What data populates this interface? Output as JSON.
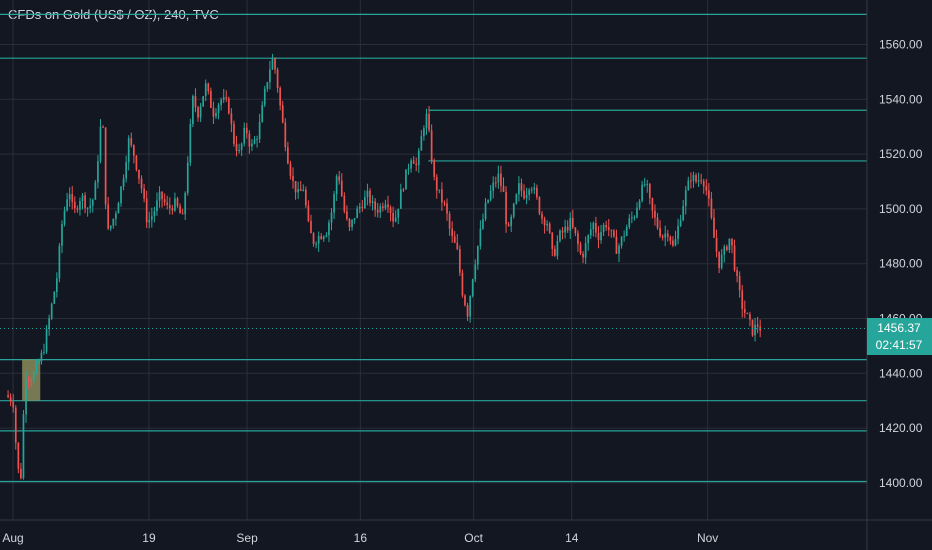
{
  "header": {
    "title": "CFDs on Gold (US$ / OZ), 240, TVC"
  },
  "price_label": {
    "value": "1456.37",
    "countdown": "02:41:57"
  },
  "colors": {
    "background": "#131722",
    "grid": "#2a2e39",
    "up": "#26a69a",
    "down": "#ef5350",
    "level_line": "#26a69a",
    "price_tag": "#26a69a",
    "zone_fill": "#8a8b5a"
  },
  "chart_data": {
    "type": "candlestick",
    "title": "CFDs on Gold (US$ / OZ), 240, TVC",
    "xlabel": "",
    "ylabel": "",
    "ylim": [
      1392,
      1576
    ],
    "y_ticks": [
      1400,
      1420,
      1440,
      1460,
      1480,
      1500,
      1520,
      1540,
      1560
    ],
    "x_ticks": [
      {
        "label": "Aug",
        "day": 1
      },
      {
        "label": "19",
        "day": 19
      },
      {
        "label": "Sep",
        "day": 32
      },
      {
        "label": "16",
        "day": 47
      },
      {
        "label": "Oct",
        "day": 62
      },
      {
        "label": "14",
        "day": 75
      },
      {
        "label": "Nov",
        "day": 93
      }
    ],
    "last_price": 1456.37,
    "horizontal_levels": [
      {
        "price": 1571,
        "from_day": 0
      },
      {
        "price": 1555,
        "from_day": 0
      },
      {
        "price": 1536,
        "from_day": 56
      },
      {
        "price": 1517.5,
        "from_day": 56
      },
      {
        "price": 1445,
        "from_day": 0
      },
      {
        "price": 1430,
        "from_day": 0
      },
      {
        "price": 1419,
        "from_day": 0
      },
      {
        "price": 1400.5,
        "from_day": 0
      }
    ],
    "zone": {
      "from_day": 2.2,
      "to_day": 4.6,
      "low": 1430,
      "high": 1445
    },
    "path": [
      [
        0,
        1432
      ],
      [
        1,
        1430
      ],
      [
        1.6,
        1405
      ],
      [
        2.2,
        1402
      ],
      [
        2.5,
        1440
      ],
      [
        3.5,
        1438
      ],
      [
        5,
        1448
      ],
      [
        5.8,
        1460
      ],
      [
        6.8,
        1475
      ],
      [
        7.5,
        1495
      ],
      [
        8.4,
        1508
      ],
      [
        9,
        1498
      ],
      [
        10,
        1505
      ],
      [
        11,
        1500
      ],
      [
        11.8,
        1505
      ],
      [
        12.6,
        1530
      ],
      [
        13,
        1528
      ],
      [
        13.4,
        1490
      ],
      [
        14.5,
        1498
      ],
      [
        15.5,
        1510
      ],
      [
        16.3,
        1525
      ],
      [
        17,
        1520
      ],
      [
        18,
        1508
      ],
      [
        18.8,
        1495
      ],
      [
        19.5,
        1498
      ],
      [
        20.5,
        1505
      ],
      [
        21.5,
        1500
      ],
      [
        22.5,
        1502
      ],
      [
        23.5,
        1496
      ],
      [
        24.2,
        1520
      ],
      [
        24.8,
        1540
      ],
      [
        25.5,
        1535
      ],
      [
        26.5,
        1545
      ],
      [
        27.5,
        1535
      ],
      [
        28.5,
        1540
      ],
      [
        29.5,
        1538
      ],
      [
        30.2,
        1525
      ],
      [
        31,
        1520
      ],
      [
        31.8,
        1530
      ],
      [
        32.5,
        1522
      ],
      [
        33.5,
        1528
      ],
      [
        34.5,
        1545
      ],
      [
        35.3,
        1555
      ],
      [
        35.8,
        1550
      ],
      [
        36.5,
        1535
      ],
      [
        37.3,
        1520
      ],
      [
        38,
        1510
      ],
      [
        38.8,
        1505
      ],
      [
        39.5,
        1508
      ],
      [
        40,
        1495
      ],
      [
        40.7,
        1488
      ],
      [
        41.5,
        1490
      ],
      [
        42.5,
        1492
      ],
      [
        43.3,
        1500
      ],
      [
        44,
        1515
      ],
      [
        44.8,
        1500
      ],
      [
        45.5,
        1492
      ],
      [
        46.3,
        1498
      ],
      [
        47.2,
        1502
      ],
      [
        48,
        1505
      ],
      [
        48.8,
        1500
      ],
      [
        49.5,
        1500
      ],
      [
        50.5,
        1504
      ],
      [
        51.5,
        1495
      ],
      [
        52.3,
        1505
      ],
      [
        53,
        1512
      ],
      [
        53.8,
        1520
      ],
      [
        54.5,
        1515
      ],
      [
        55.3,
        1530
      ],
      [
        55.8,
        1534
      ],
      [
        56.3,
        1522
      ],
      [
        56.8,
        1510
      ],
      [
        57.5,
        1505
      ],
      [
        58.3,
        1500
      ],
      [
        59,
        1490
      ],
      [
        59.8,
        1485
      ],
      [
        60.5,
        1470
      ],
      [
        61.2,
        1462
      ],
      [
        62,
        1478
      ],
      [
        62.8,
        1490
      ],
      [
        63.5,
        1500
      ],
      [
        64.5,
        1508
      ],
      [
        65.3,
        1512
      ],
      [
        66,
        1505
      ],
      [
        66.5,
        1490
      ],
      [
        67.3,
        1500
      ],
      [
        68,
        1508
      ],
      [
        68.8,
        1505
      ],
      [
        69.5,
        1510
      ],
      [
        70.2,
        1505
      ],
      [
        71,
        1497
      ],
      [
        71.8,
        1495
      ],
      [
        72.5,
        1482
      ],
      [
        73.3,
        1490
      ],
      [
        74,
        1492
      ],
      [
        74.8,
        1495
      ],
      [
        75.5,
        1490
      ],
      [
        76.3,
        1482
      ],
      [
        77,
        1488
      ],
      [
        77.8,
        1495
      ],
      [
        78.5,
        1490
      ],
      [
        79.5,
        1495
      ],
      [
        80.3,
        1490
      ],
      [
        81,
        1485
      ],
      [
        81.8,
        1490
      ],
      [
        82.5,
        1495
      ],
      [
        83.3,
        1498
      ],
      [
        84,
        1505
      ],
      [
        84.8,
        1510
      ],
      [
        85.5,
        1500
      ],
      [
        86.3,
        1494
      ],
      [
        87,
        1490
      ],
      [
        87.8,
        1492
      ],
      [
        88.5,
        1485
      ],
      [
        89.2,
        1495
      ],
      [
        90,
        1505
      ],
      [
        90.8,
        1512
      ],
      [
        91.5,
        1510
      ],
      [
        92.3,
        1512
      ],
      [
        93,
        1505
      ],
      [
        93.8,
        1490
      ],
      [
        94.5,
        1480
      ],
      [
        95.3,
        1485
      ],
      [
        96,
        1490
      ],
      [
        96.8,
        1475
      ],
      [
        97.5,
        1465
      ],
      [
        98.3,
        1460
      ],
      [
        99,
        1455
      ],
      [
        99.5,
        1458
      ],
      [
        100,
        1456.37
      ]
    ]
  }
}
